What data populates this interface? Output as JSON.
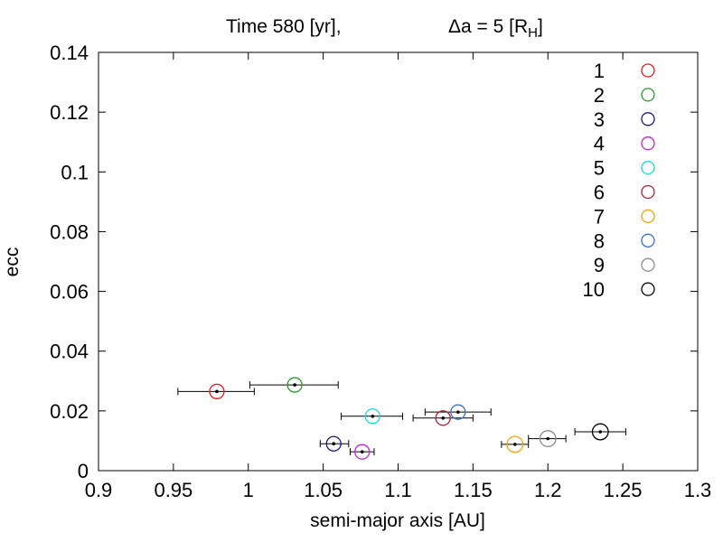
{
  "chart_data": {
    "type": "scatter",
    "title_left": "Time 580 [yr],",
    "title_right_prefix": "Δa = 5 [R",
    "title_right_sub": "H",
    "title_right_suffix": "]",
    "xlabel": "semi-major axis [AU]",
    "ylabel": "ecc",
    "xlim": [
      0.9,
      1.3
    ],
    "ylim": [
      0,
      0.14
    ],
    "xticks": [
      0.9,
      0.95,
      1.0,
      1.05,
      1.1,
      1.15,
      1.2,
      1.25,
      1.3
    ],
    "xtick_labels": [
      "0.9",
      "0.95",
      "1",
      "1.05",
      "1.1",
      "1.15",
      "1.2",
      "1.25",
      "1.3"
    ],
    "yticks": [
      0,
      0.02,
      0.04,
      0.06,
      0.08,
      0.1,
      0.12,
      0.14
    ],
    "ytick_labels": [
      "0",
      "0.02",
      "0.04",
      "0.06",
      "0.08",
      "0.1",
      "0.12",
      "0.14"
    ],
    "grid": false,
    "legend_position": "top-right",
    "series": [
      {
        "name": "1",
        "color": "#e41a1c",
        "x": 0.979,
        "y": 0.0265,
        "xerr": [
          0.953,
          1.004
        ],
        "size": 1.0
      },
      {
        "name": "2",
        "color": "#2a9d2a",
        "x": 1.031,
        "y": 0.0287,
        "xerr": [
          1.001,
          1.06
        ],
        "size": 1.0
      },
      {
        "name": "3",
        "color": "#1b1b7a",
        "x": 1.057,
        "y": 0.009,
        "xerr": [
          1.048,
          1.067
        ],
        "size": 1.0
      },
      {
        "name": "4",
        "color": "#c026d3",
        "x": 1.076,
        "y": 0.0063,
        "xerr": [
          1.068,
          1.084
        ],
        "size": 1.0
      },
      {
        "name": "5",
        "color": "#22d3e0",
        "x": 1.083,
        "y": 0.0182,
        "xerr": [
          1.062,
          1.103
        ],
        "size": 1.0
      },
      {
        "name": "6",
        "color": "#b22234",
        "x": 1.13,
        "y": 0.0176,
        "xerr": [
          1.11,
          1.15
        ],
        "size": 1.0
      },
      {
        "name": "7",
        "color": "#f0a30a",
        "x": 1.178,
        "y": 0.0088,
        "xerr": [
          1.169,
          1.187
        ],
        "size": 1.1
      },
      {
        "name": "8",
        "color": "#3b6fd6",
        "x": 1.14,
        "y": 0.0196,
        "xerr": [
          1.118,
          1.162
        ],
        "size": 1.0
      },
      {
        "name": "9",
        "color": "#8c8c8c",
        "x": 1.2,
        "y": 0.0107,
        "xerr": [
          1.187,
          1.212
        ],
        "size": 1.1
      },
      {
        "name": "10",
        "color": "#000000",
        "x": 1.235,
        "y": 0.013,
        "xerr": [
          1.218,
          1.252
        ],
        "size": 1.1
      }
    ]
  }
}
